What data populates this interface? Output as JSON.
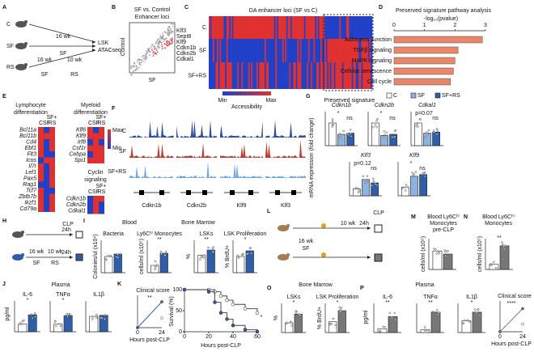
{
  "A": {
    "letter": "A",
    "groups": [
      "C",
      "SF",
      "RS"
    ],
    "arm1": [
      "16 wk",
      "SF"
    ],
    "arm2": [
      "16 wk",
      "10 wk",
      "SF",
      "RS"
    ],
    "readout": [
      "LSK",
      "ATACseq"
    ]
  },
  "B": {
    "letter": "B",
    "title": [
      "SF vs. Control",
      "Enhancer loci"
    ],
    "ylabel": "Control",
    "xlabel": "SF",
    "genes": [
      "Klf3",
      "Sept8",
      "Klf9",
      "Cdkn1b",
      "Cdkn2b",
      "Cdkal1"
    ]
  },
  "C": {
    "letter": "C",
    "title": "DA enhancer loci (SF vs C)",
    "rows": [
      "C",
      "SF",
      "SF+RS"
    ],
    "legend": [
      "Min",
      "Max",
      "Accessibility"
    ],
    "note": "Preserved signature"
  },
  "D": {
    "letter": "D",
    "title": "Preserved signature pathway analysis",
    "chart_data": {
      "type": "hbar",
      "xlabel": "-log₁₀(pvalue)",
      "categories": [
        "Adherens Junction",
        "TGFβ signaling",
        "MAPK signaling",
        "Cellular senescence",
        "Cell cycle"
      ],
      "values": [
        2.9,
        2.1,
        2.0,
        1.95,
        1.85
      ],
      "color": "#e9876a",
      "xlim": [
        0,
        3
      ],
      "xticks": [
        0,
        1,
        2,
        3
      ]
    }
  },
  "E": {
    "letter": "E",
    "lymph_title": [
      "Lymphocyte",
      "differentiation"
    ],
    "myeloid_title": [
      "Myeloid",
      "differentiation"
    ],
    "cyclin_title": [
      "Cyclin",
      "signaling"
    ],
    "cols": [
      "SF+",
      "C",
      "SF",
      "RS"
    ],
    "legend": [
      "Max",
      "Min"
    ],
    "lymph_genes": [
      "Bcl11a",
      "Bcl11b",
      "Cd4",
      "Ebf1",
      "Flt3",
      "Icos",
      "Il7r",
      "Lef1",
      "Pax5",
      "Rag1",
      "Tcf7",
      "Zbtb7b",
      "Ikzf1",
      "Cd79a"
    ],
    "myeloid_genes": [
      "Klf6",
      "Klf9",
      "Irf8",
      "Csf1r",
      "Cebpa",
      "Spi1"
    ],
    "cyclin_genes": [
      "Cdkn1b",
      "Cdkn2b",
      "Cdkal1"
    ]
  },
  "F": {
    "letter": "F",
    "tracks": [
      "C",
      "SF",
      "SF+RS"
    ],
    "genes": [
      "Cdkn1b",
      "Cdkn2b",
      "Klf9",
      "Klf3"
    ]
  },
  "G": {
    "letter": "G",
    "legend": [
      "C",
      "SF",
      "SF+RS"
    ],
    "colors": [
      "#ffffff",
      "#8db3e2",
      "#2e5ea8"
    ],
    "ylabel": "mRNA expression (fold change)",
    "charts": [
      {
        "title": "Cdkn1b",
        "values": [
          1,
          0.5,
          0.55
        ],
        "ylim": [
          0,
          1.5
        ],
        "notes": [
          "*",
          "ns"
        ]
      },
      {
        "title": "Cdkn2b",
        "values": [
          1,
          0.45,
          0.5
        ],
        "ylim": [
          0,
          1.5
        ],
        "notes": [
          "*",
          "ns"
        ]
      },
      {
        "title": "Cdkal1",
        "values": [
          1,
          0.55,
          0.6
        ],
        "ylim": [
          0,
          1.5
        ],
        "notes": [
          "p=0.07",
          "ns"
        ]
      },
      {
        "title": "Klf3",
        "values": [
          1,
          2.4,
          1.9
        ],
        "ylim": [
          0,
          5
        ],
        "notes": [
          "p=0.12",
          "ns"
        ]
      },
      {
        "title": "Klf9",
        "values": [
          1,
          2.3,
          2.5
        ],
        "ylim": [
          0,
          4
        ],
        "notes": [
          "*",
          "ns"
        ]
      }
    ]
  },
  "H": {
    "letter": "H",
    "labels": [
      "CLP",
      "24h",
      "24h",
      "16 wk",
      "10 wk",
      "SF",
      "RS"
    ]
  },
  "I": {
    "letter": "I",
    "headers": [
      "Blood",
      "Bone Marrow"
    ],
    "colors": [
      "#ffffff",
      "#2e5ea8"
    ],
    "charts": [
      {
        "title": "Bacteria",
        "ylabel": "Colonies/ul (x10⁴)",
        "values": [
          4,
          4.6
        ],
        "ylim": [
          0,
          8
        ],
        "sig": ""
      },
      {
        "title": "Ly6Cʰⁱ Monocytes",
        "ylabel": "cells/ml (x10⁵)",
        "values": [
          1.8,
          4.8
        ],
        "ylim": [
          0,
          8
        ],
        "sig": "**"
      },
      {
        "title": "LSKs",
        "ylabel": "%",
        "values": [
          0.16,
          0.21
        ],
        "ylim": [
          0,
          0.3
        ],
        "sig": "**"
      },
      {
        "title": "LSK Proliferation",
        "ylabel": "% BrdU+",
        "values": [
          20,
          27
        ],
        "ylim": [
          0,
          40
        ],
        "sig": "*"
      }
    ]
  },
  "J": {
    "letter": "J",
    "header": "Plasma",
    "ylabel": "pg/ml",
    "charts": [
      {
        "title": "IL-6",
        "values": [
          250,
          550
        ],
        "ylim": [
          0,
          1000
        ],
        "sig": "*"
      },
      {
        "title": "TNFα",
        "values": [
          200,
          420
        ],
        "ylim": [
          0,
          800
        ],
        "sig": "*"
      },
      {
        "title": "IL1β",
        "values": [
          300,
          320
        ],
        "ylim": [
          0,
          600
        ],
        "sig": ""
      }
    ]
  },
  "K": {
    "letter": "K",
    "score_title": "Clinical score",
    "score_sig": "**",
    "xlabel": "Hours post-CLP",
    "score_x": [
      0,
      24
    ],
    "score_series": [
      [
        0,
        1.2
      ],
      [
        0,
        3.2
      ]
    ],
    "survival": {
      "ylabel": "Survival (%)",
      "sig": "*",
      "x": [
        0,
        20,
        25,
        30,
        35,
        40,
        50,
        60
      ],
      "series": [
        [
          100,
          100,
          95,
          85,
          75,
          65,
          55,
          45
        ],
        [
          100,
          95,
          70,
          45,
          30,
          15,
          5,
          0
        ]
      ],
      "xlim": [
        0,
        60
      ],
      "xticks": [
        0,
        20,
        40,
        60
      ],
      "ylim": [
        0,
        100
      ],
      "yticks": [
        0,
        50,
        100
      ]
    }
  },
  "L": {
    "letter": "L",
    "labels": [
      "CLP",
      "24h",
      "16 wk",
      "SF",
      "10 wk"
    ]
  },
  "M": {
    "letter": "M",
    "title": [
      "Blood Ly6Cʰⁱ",
      "Monocytes",
      "pre-CLP"
    ],
    "ylabel": "cells/ml (x10⁵)",
    "values": [
      1.5,
      1.25
    ],
    "ylim": [
      0,
      2.5
    ]
  },
  "N": {
    "letter": "N",
    "title": [
      "Blood Ly6Cʰⁱ",
      "Monocytes"
    ],
    "ylabel": "cells/ml (x10⁵)",
    "values": [
      0.5,
      2.3
    ],
    "ylim": [
      0,
      3
    ],
    "sig": "**"
  },
  "O": {
    "letter": "O",
    "header": "Bone Marrow",
    "charts": [
      {
        "title": "LSKs",
        "ylabel": "%",
        "values": [
          0.1,
          0.19
        ],
        "ylim": [
          0,
          0.3
        ],
        "sig": "*"
      },
      {
        "title": "LSK Proliferation",
        "ylabel": "% BrdU+",
        "values": [
          15,
          30
        ],
        "ylim": [
          0,
          40
        ],
        "sig": "*"
      }
    ]
  },
  "P": {
    "letter": "P",
    "header": "Plasma",
    "ylabel": "pg/ml",
    "colors": [
      "#ffffff",
      "#777777"
    ],
    "charts": [
      {
        "title": "IL-6",
        "values": [
          25,
          110
        ],
        "ylim": [
          0,
          200
        ],
        "sig": "**"
      },
      {
        "title": "TNFα",
        "values": [
          5,
          35
        ],
        "ylim": [
          0,
          50
        ],
        "sig": "**"
      },
      {
        "title": "IL1β",
        "values": [
          20,
          35
        ],
        "ylim": [
          0,
          50
        ],
        "sig": "*"
      }
    ],
    "score_title": "Clinical score",
    "score_sig": "****",
    "xlabel": "Hours post-CLP",
    "score_x": [
      0,
      24
    ],
    "score_series": [
      [
        0,
        1
      ],
      [
        0,
        3
      ]
    ]
  }
}
